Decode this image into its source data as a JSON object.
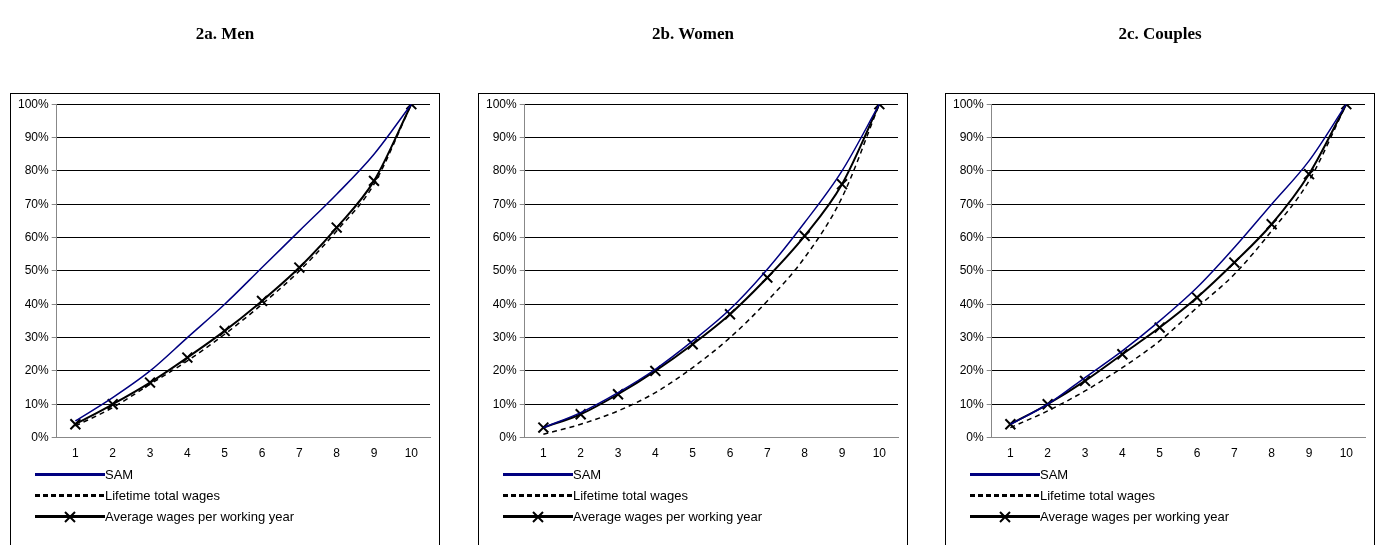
{
  "chart_data": [
    {
      "type": "line",
      "title": "2a. Men",
      "categories": [
        "1",
        "2",
        "3",
        "4",
        "5",
        "6",
        "7",
        "8",
        "9",
        "10"
      ],
      "ylim": [
        0,
        100
      ],
      "yticks": [
        {
          "value": 0,
          "label": "0%"
        },
        {
          "value": 10,
          "label": "10%"
        },
        {
          "value": 20,
          "label": "20%"
        },
        {
          "value": 30,
          "label": "30%"
        },
        {
          "value": 40,
          "label": "40%"
        },
        {
          "value": 50,
          "label": "50%"
        },
        {
          "value": 60,
          "label": "60%"
        },
        {
          "value": 70,
          "label": "70%"
        },
        {
          "value": 80,
          "label": "80%"
        },
        {
          "value": 90,
          "label": "90%"
        },
        {
          "value": 100,
          "label": "100%"
        }
      ],
      "grid": "y",
      "legend": "bottom",
      "series": [
        {
          "name": "SAM",
          "color": "#000080",
          "line_style": "solid",
          "marker": "none",
          "values": [
            5,
            12,
            20,
            30,
            40,
            51,
            62,
            73,
            85,
            100
          ]
        },
        {
          "name": "Lifetime total wages",
          "color": "#000000",
          "line_style": "dashed",
          "marker": "none",
          "values": [
            3.5,
            9,
            16,
            23,
            31,
            40,
            50,
            62,
            76,
            100
          ]
        },
        {
          "name": "Average wages per working year",
          "color": "#000000",
          "line_style": "solid",
          "marker": "cross",
          "values": [
            4,
            10,
            16.5,
            24,
            32,
            41,
            51,
            63,
            77,
            100
          ]
        }
      ]
    },
    {
      "type": "line",
      "title": "2b. Women",
      "categories": [
        "1",
        "2",
        "3",
        "4",
        "5",
        "6",
        "7",
        "8",
        "9",
        "10"
      ],
      "ylim": [
        0,
        100
      ],
      "yticks": [
        {
          "value": 0,
          "label": "0%"
        },
        {
          "value": 10,
          "label": "10%"
        },
        {
          "value": 20,
          "label": "20%"
        },
        {
          "value": 30,
          "label": "30%"
        },
        {
          "value": 40,
          "label": "40%"
        },
        {
          "value": 50,
          "label": "50%"
        },
        {
          "value": 60,
          "label": "60%"
        },
        {
          "value": 70,
          "label": "70%"
        },
        {
          "value": 80,
          "label": "80%"
        },
        {
          "value": 90,
          "label": "90%"
        },
        {
          "value": 100,
          "label": "100%"
        }
      ],
      "grid": "y",
      "legend": "bottom",
      "series": [
        {
          "name": "SAM",
          "color": "#000080",
          "line_style": "solid",
          "marker": "none",
          "values": [
            3,
            7.5,
            13.5,
            20.5,
            29,
            38.5,
            50.5,
            64.5,
            80,
            100
          ]
        },
        {
          "name": "Lifetime total wages",
          "color": "#000000",
          "line_style": "dashed",
          "marker": "none",
          "values": [
            1,
            4,
            8,
            13.5,
            21,
            30,
            41,
            54,
            72,
            100
          ]
        },
        {
          "name": "Average wages per working year",
          "color": "#000000",
          "line_style": "solid",
          "marker": "cross",
          "values": [
            3,
            7,
            13,
            20,
            28,
            37,
            48,
            60.5,
            76,
            100
          ]
        }
      ]
    },
    {
      "type": "line",
      "title": "2c. Couples",
      "categories": [
        "1",
        "2",
        "3",
        "4",
        "5",
        "6",
        "7",
        "8",
        "9",
        "10"
      ],
      "ylim": [
        0,
        100
      ],
      "yticks": [
        {
          "value": 0,
          "label": "0%"
        },
        {
          "value": 10,
          "label": "10%"
        },
        {
          "value": 20,
          "label": "20%"
        },
        {
          "value": 30,
          "label": "30%"
        },
        {
          "value": 40,
          "label": "40%"
        },
        {
          "value": 50,
          "label": "50%"
        },
        {
          "value": 60,
          "label": "60%"
        },
        {
          "value": 70,
          "label": "70%"
        },
        {
          "value": 80,
          "label": "80%"
        },
        {
          "value": 90,
          "label": "90%"
        },
        {
          "value": 100,
          "label": "100%"
        }
      ],
      "grid": "y",
      "legend": "bottom",
      "series": [
        {
          "name": "SAM",
          "color": "#000080",
          "line_style": "solid",
          "marker": "none",
          "values": [
            4,
            10,
            18,
            26,
            35,
            45,
            57,
            70,
            83,
            100
          ]
        },
        {
          "name": "Lifetime total wages",
          "color": "#000000",
          "line_style": "dashed",
          "marker": "none",
          "values": [
            3,
            8,
            14,
            21,
            29,
            39,
            49,
            62,
            77,
            100
          ]
        },
        {
          "name": "Average wages per working year",
          "color": "#000000",
          "line_style": "solid",
          "marker": "cross",
          "values": [
            4,
            10,
            17,
            25,
            33,
            42,
            52.5,
            64,
            79,
            100
          ]
        }
      ]
    }
  ]
}
